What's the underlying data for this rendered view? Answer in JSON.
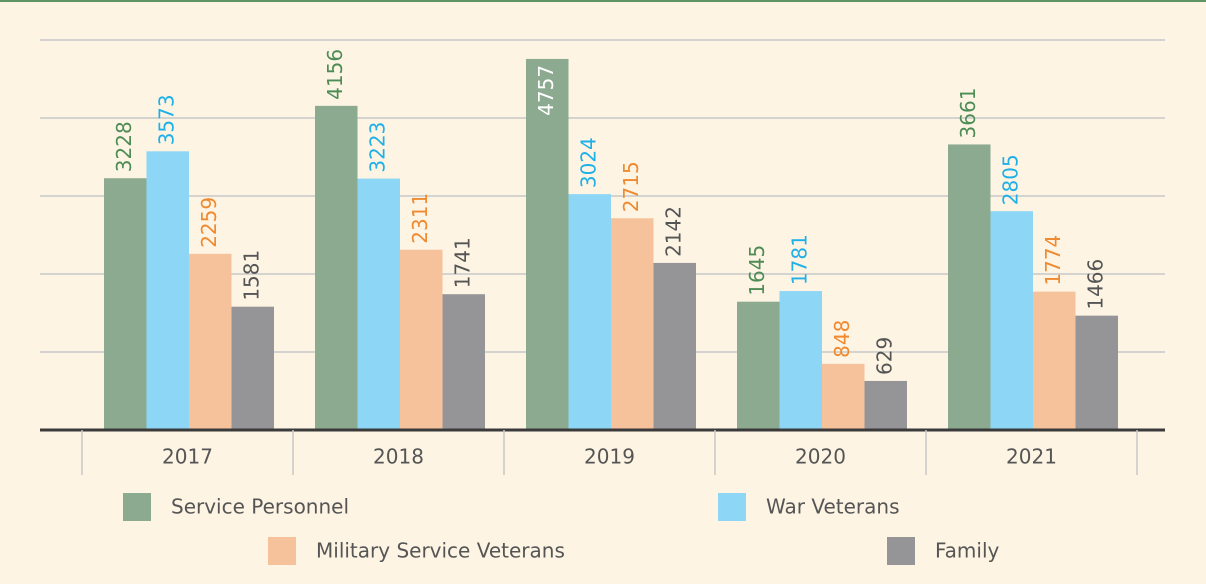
{
  "chart_data": {
    "type": "bar",
    "categories": [
      "2017",
      "2018",
      "2019",
      "2020",
      "2021"
    ],
    "series": [
      {
        "name": "Service Personnel",
        "color": "#8caa8f",
        "label_color": "#4e8c56",
        "values": [
          3228,
          4156,
          4757,
          1645,
          3661
        ]
      },
      {
        "name": "War Veterans",
        "color": "#8dd6f6",
        "label_color": "#1eb0e6",
        "values": [
          3573,
          3223,
          3024,
          1781,
          2805
        ]
      },
      {
        "name": "Military Service Veterans",
        "color": "#f6c29b",
        "label_color": "#ef8a30",
        "values": [
          2259,
          2311,
          2715,
          848,
          1774
        ]
      },
      {
        "name": "Family",
        "color": "#959598",
        "label_color": "#555555",
        "values": [
          1581,
          1741,
          2142,
          629,
          1466
        ]
      }
    ],
    "ylim": [
      0,
      5000
    ],
    "yticks": [
      1000,
      2000,
      3000,
      4000,
      5000
    ],
    "grid": true
  }
}
